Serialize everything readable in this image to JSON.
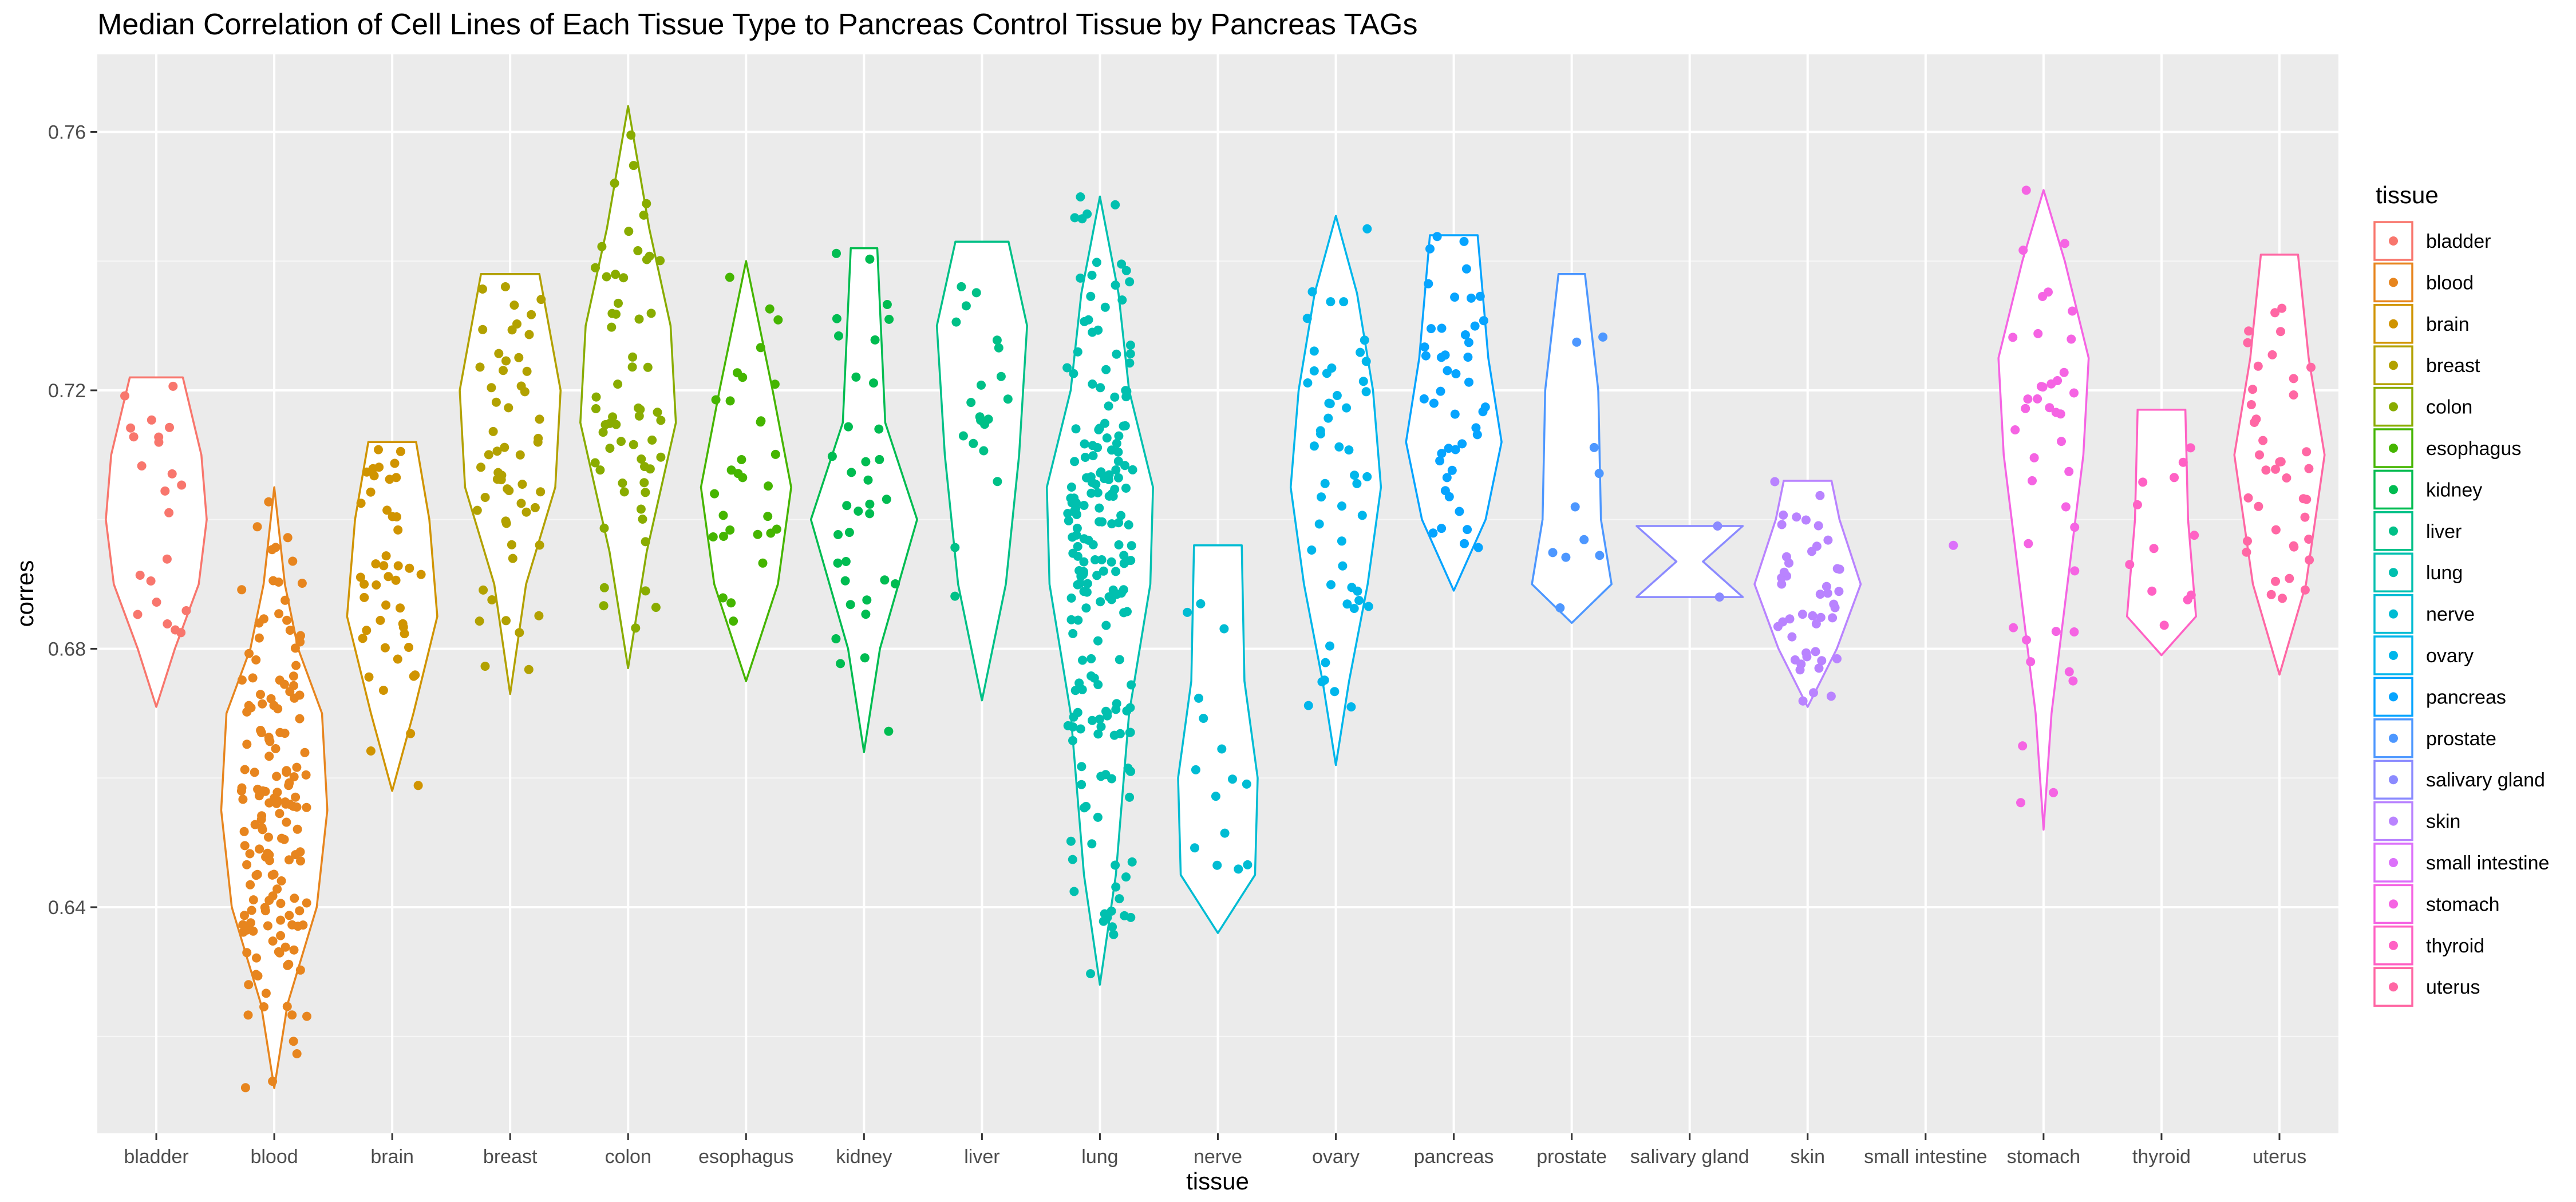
{
  "chart_data": {
    "type": "violin",
    "title": "Median Correlation of Cell Lines of Each Tissue Type to Pancreas Control Tissue by Pancreas TAGs",
    "xlabel": "tissue",
    "ylabel": "corres",
    "ylim": [
      0.605,
      0.772
    ],
    "yticks": [
      0.64,
      0.68,
      0.72,
      0.76
    ],
    "ytick_labels": [
      "0.64",
      "0.68",
      "0.72",
      "0.76"
    ],
    "grid": true,
    "legend": {
      "title": "tissue",
      "position": "right"
    },
    "categories": [
      "bladder",
      "blood",
      "brain",
      "breast",
      "colon",
      "esophagus",
      "kidney",
      "liver",
      "lung",
      "nerve",
      "ovary",
      "pancreas",
      "prostate",
      "salivary gland",
      "skin",
      "small intestine",
      "stomach",
      "thyroid",
      "uterus"
    ],
    "series": [
      {
        "name": "bladder",
        "color": "#F8766D",
        "range": [
          0.671,
          0.722
        ],
        "n": 22,
        "shape": [
          [
            0.671,
            0.0
          ],
          [
            0.68,
            0.35
          ],
          [
            0.69,
            0.8
          ],
          [
            0.7,
            0.95
          ],
          [
            0.71,
            0.85
          ],
          [
            0.722,
            0.5
          ]
        ]
      },
      {
        "name": "blood",
        "color": "#E7851E",
        "range": [
          0.612,
          0.705
        ],
        "n": 160,
        "shape": [
          [
            0.612,
            0.0
          ],
          [
            0.625,
            0.25
          ],
          [
            0.64,
            0.8
          ],
          [
            0.655,
            1.0
          ],
          [
            0.67,
            0.9
          ],
          [
            0.68,
            0.45
          ],
          [
            0.69,
            0.2
          ],
          [
            0.705,
            0.0
          ]
        ]
      },
      {
        "name": "brain",
        "color": "#D09400",
        "range": [
          0.658,
          0.712
        ],
        "n": 45,
        "shape": [
          [
            0.658,
            0.0
          ],
          [
            0.67,
            0.4
          ],
          [
            0.685,
            0.85
          ],
          [
            0.7,
            0.7
          ],
          [
            0.712,
            0.45
          ]
        ]
      },
      {
        "name": "breast",
        "color": "#B2A100",
        "range": [
          0.673,
          0.738
        ],
        "n": 55,
        "shape": [
          [
            0.673,
            0.0
          ],
          [
            0.69,
            0.3
          ],
          [
            0.705,
            0.85
          ],
          [
            0.72,
            0.95
          ],
          [
            0.738,
            0.55
          ]
        ]
      },
      {
        "name": "colon",
        "color": "#89AC00",
        "range": [
          0.677,
          0.764
        ],
        "n": 60,
        "shape": [
          [
            0.677,
            0.0
          ],
          [
            0.695,
            0.35
          ],
          [
            0.715,
            0.9
          ],
          [
            0.73,
            0.8
          ],
          [
            0.745,
            0.4
          ],
          [
            0.764,
            0.0
          ]
        ]
      },
      {
        "name": "esophagus",
        "color": "#45B500",
        "range": [
          0.675,
          0.74
        ],
        "n": 30,
        "shape": [
          [
            0.675,
            0.0
          ],
          [
            0.69,
            0.6
          ],
          [
            0.705,
            0.85
          ],
          [
            0.72,
            0.5
          ],
          [
            0.74,
            0.0
          ]
        ]
      },
      {
        "name": "kidney",
        "color": "#00BC51",
        "range": [
          0.664,
          0.742
        ],
        "n": 35,
        "shape": [
          [
            0.664,
            0.0
          ],
          [
            0.68,
            0.3
          ],
          [
            0.7,
            1.0
          ],
          [
            0.715,
            0.4
          ],
          [
            0.742,
            0.25
          ]
        ]
      },
      {
        "name": "liver",
        "color": "#00C087",
        "range": [
          0.672,
          0.743
        ],
        "n": 20,
        "shape": [
          [
            0.672,
            0.0
          ],
          [
            0.69,
            0.45
          ],
          [
            0.71,
            0.7
          ],
          [
            0.73,
            0.85
          ],
          [
            0.743,
            0.5
          ]
        ]
      },
      {
        "name": "lung",
        "color": "#00C0AF",
        "range": [
          0.628,
          0.75
        ],
        "n": 200,
        "shape": [
          [
            0.628,
            0.0
          ],
          [
            0.645,
            0.3
          ],
          [
            0.67,
            0.55
          ],
          [
            0.69,
            0.95
          ],
          [
            0.705,
            1.0
          ],
          [
            0.72,
            0.55
          ],
          [
            0.735,
            0.35
          ],
          [
            0.75,
            0.0
          ]
        ]
      },
      {
        "name": "nerve",
        "color": "#00BCD3",
        "range": [
          0.636,
          0.696
        ],
        "n": 15,
        "shape": [
          [
            0.636,
            0.0
          ],
          [
            0.645,
            0.7
          ],
          [
            0.66,
            0.75
          ],
          [
            0.675,
            0.5
          ],
          [
            0.696,
            0.45
          ]
        ]
      },
      {
        "name": "ovary",
        "color": "#00B6EB",
        "range": [
          0.662,
          0.747
        ],
        "n": 50,
        "shape": [
          [
            0.662,
            0.0
          ],
          [
            0.675,
            0.25
          ],
          [
            0.69,
            0.6
          ],
          [
            0.705,
            0.85
          ],
          [
            0.72,
            0.7
          ],
          [
            0.735,
            0.4
          ],
          [
            0.747,
            0.0
          ]
        ]
      },
      {
        "name": "pancreas",
        "color": "#06A4FF",
        "range": [
          0.689,
          0.744
        ],
        "n": 45,
        "shape": [
          [
            0.689,
            0.0
          ],
          [
            0.7,
            0.6
          ],
          [
            0.712,
            0.9
          ],
          [
            0.725,
            0.65
          ],
          [
            0.744,
            0.45
          ]
        ]
      },
      {
        "name": "prostate",
        "color": "#4D97FF",
        "range": [
          0.684,
          0.738
        ],
        "n": 10,
        "shape": [
          [
            0.684,
            0.0
          ],
          [
            0.69,
            0.75
          ],
          [
            0.7,
            0.55
          ],
          [
            0.72,
            0.5
          ],
          [
            0.738,
            0.25
          ]
        ]
      },
      {
        "name": "salivary gland",
        "color": "#8B8AFF",
        "range": [
          0.688,
          0.699
        ],
        "n": 2,
        "shape": [
          [
            0.688,
            1.0
          ],
          [
            0.6935,
            0.25
          ],
          [
            0.699,
            1.0
          ]
        ]
      },
      {
        "name": "skin",
        "color": "#B983FF",
        "range": [
          0.671,
          0.706
        ],
        "n": 45,
        "shape": [
          [
            0.671,
            0.0
          ],
          [
            0.68,
            0.55
          ],
          [
            0.69,
            1.0
          ],
          [
            0.7,
            0.6
          ],
          [
            0.706,
            0.45
          ]
        ]
      },
      {
        "name": "small intestine",
        "color": "#DC71FA",
        "range": [
          0.696,
          0.696
        ],
        "n": 1,
        "shape": []
      },
      {
        "name": "stomach",
        "color": "#F564E3",
        "range": [
          0.652,
          0.751
        ],
        "n": 40,
        "shape": [
          [
            0.652,
            0.0
          ],
          [
            0.67,
            0.15
          ],
          [
            0.69,
            0.45
          ],
          [
            0.71,
            0.75
          ],
          [
            0.725,
            0.85
          ],
          [
            0.74,
            0.4
          ],
          [
            0.751,
            0.0
          ]
        ]
      },
      {
        "name": "thyroid",
        "color": "#FF61C4",
        "range": [
          0.679,
          0.717
        ],
        "n": 12,
        "shape": [
          [
            0.679,
            0.0
          ],
          [
            0.685,
            0.65
          ],
          [
            0.7,
            0.5
          ],
          [
            0.717,
            0.45
          ]
        ]
      },
      {
        "name": "uterus",
        "color": "#FF67A4",
        "range": [
          0.676,
          0.741
        ],
        "n": 40,
        "shape": [
          [
            0.676,
            0.0
          ],
          [
            0.69,
            0.5
          ],
          [
            0.71,
            0.85
          ],
          [
            0.725,
            0.55
          ],
          [
            0.741,
            0.35
          ]
        ]
      }
    ]
  }
}
